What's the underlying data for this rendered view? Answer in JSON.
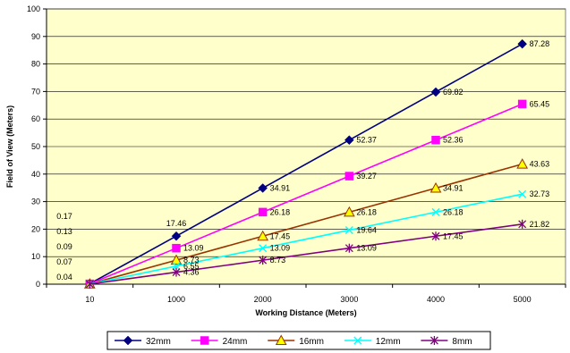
{
  "chart_data": {
    "type": "line",
    "xlabel": "Working Distance (Meters)",
    "ylabel": "Field of View (Meters)",
    "categories": [
      "10",
      "1000",
      "2000",
      "3000",
      "4000",
      "5000"
    ],
    "ylim": [
      0,
      100
    ],
    "yticks": [
      0,
      10,
      20,
      30,
      40,
      50,
      60,
      70,
      80,
      90,
      100
    ],
    "plot_background": "#ffffcc",
    "grid": "horizontal",
    "legend_position": "bottom",
    "series": [
      {
        "name": "32mm",
        "color": "#000080",
        "marker": "diamond",
        "values": [
          0.17,
          17.46,
          34.91,
          52.37,
          69.82,
          87.28
        ],
        "labels": [
          "0.17",
          "17.46",
          "34.91",
          "52.37",
          "69.82",
          "87.28"
        ]
      },
      {
        "name": "24mm",
        "color": "#ff00ff",
        "marker": "square",
        "values": [
          0.13,
          13.09,
          26.18,
          39.27,
          52.36,
          65.45
        ],
        "labels": [
          "0.13",
          "13.09",
          "26.18",
          "39.27",
          "52.36",
          "65.45"
        ]
      },
      {
        "name": "16mm",
        "color": "#993300",
        "marker": "triangle",
        "values": [
          0.09,
          8.73,
          17.45,
          26.18,
          34.91,
          43.63
        ],
        "labels": [
          "0.09",
          "8.73",
          "17.45",
          "26.18",
          "34.91",
          "43.63"
        ]
      },
      {
        "name": "12mm",
        "color": "#00ffff",
        "marker": "x",
        "values": [
          0.07,
          6.55,
          13.09,
          19.64,
          26.18,
          32.73
        ],
        "labels": [
          "0.07",
          "6.55",
          "13.09",
          "19.64",
          "26.18",
          "32.73"
        ]
      },
      {
        "name": "8mm",
        "color": "#800080",
        "marker": "star",
        "values": [
          0.04,
          4.36,
          8.73,
          13.09,
          17.45,
          21.82
        ],
        "labels": [
          "0.04",
          "4.36",
          "8.73",
          "13.09",
          "17.45",
          "21.82"
        ]
      }
    ]
  }
}
